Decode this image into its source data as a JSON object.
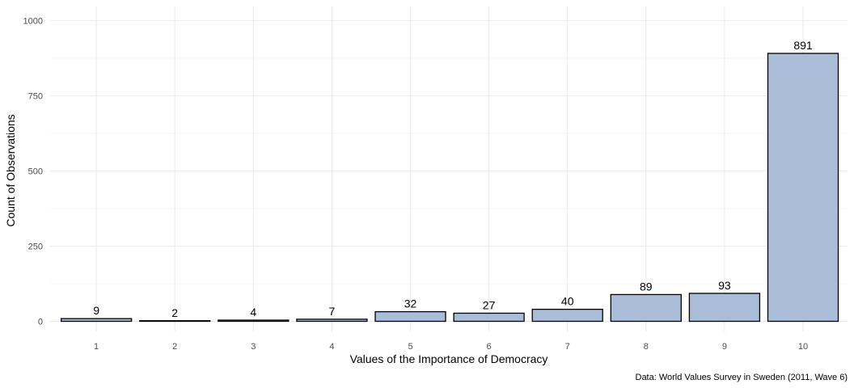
{
  "chart_data": {
    "type": "bar",
    "categories": [
      "1",
      "2",
      "3",
      "4",
      "5",
      "6",
      "7",
      "8",
      "9",
      "10"
    ],
    "values": [
      9,
      2,
      4,
      7,
      32,
      27,
      40,
      89,
      93,
      891
    ],
    "data_labels": [
      "9",
      "2",
      "4",
      "7",
      "32",
      "27",
      "40",
      "89",
      "93",
      "891"
    ],
    "xlabel": "Values of the Importance of Democracy",
    "ylabel": "Count of Observations",
    "ylim": [
      0,
      1000
    ],
    "yticks": [
      0,
      250,
      500,
      750,
      1000
    ],
    "ytick_labels": [
      "0",
      "250",
      "500",
      "750",
      "1000"
    ],
    "caption": "Data: World Values Survey in Sweden (2011, Wave 6)",
    "grid": true,
    "legend": "none",
    "colors": {
      "bar_fill": "#a9bcd8",
      "bar_stroke": "#000000",
      "grid_major": "#ebebeb",
      "grid_minor": "#f4f4f4",
      "background": "#ffffff"
    }
  }
}
